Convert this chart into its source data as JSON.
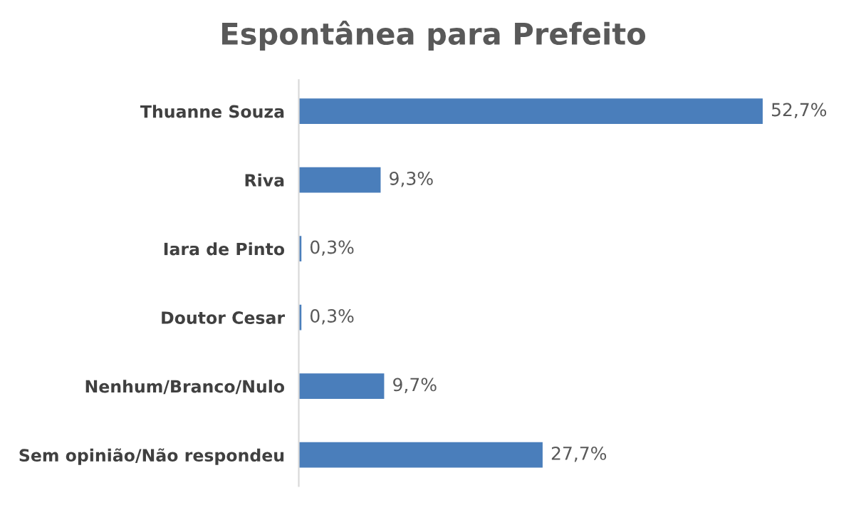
{
  "chart_data": {
    "type": "bar",
    "orientation": "horizontal",
    "title": "Espontânea para Prefeito",
    "categories": [
      "Thuanne Souza",
      "Riva",
      "Iara de Pinto",
      "Doutor Cesar",
      "Nenhum/Branco/Nulo",
      "Sem opinião/Não respondeu"
    ],
    "series": [
      {
        "color": "#4a7ebb",
        "values": [
          52.7,
          9.3,
          0.3,
          0.3,
          9.7,
          27.7
        ],
        "value_labels": [
          "52,7%",
          "9,3%",
          "0,3%",
          "0,3%",
          "9,7%",
          "27,7%"
        ]
      }
    ],
    "tick_labels": "y",
    "grid": false,
    "legend": false
  }
}
